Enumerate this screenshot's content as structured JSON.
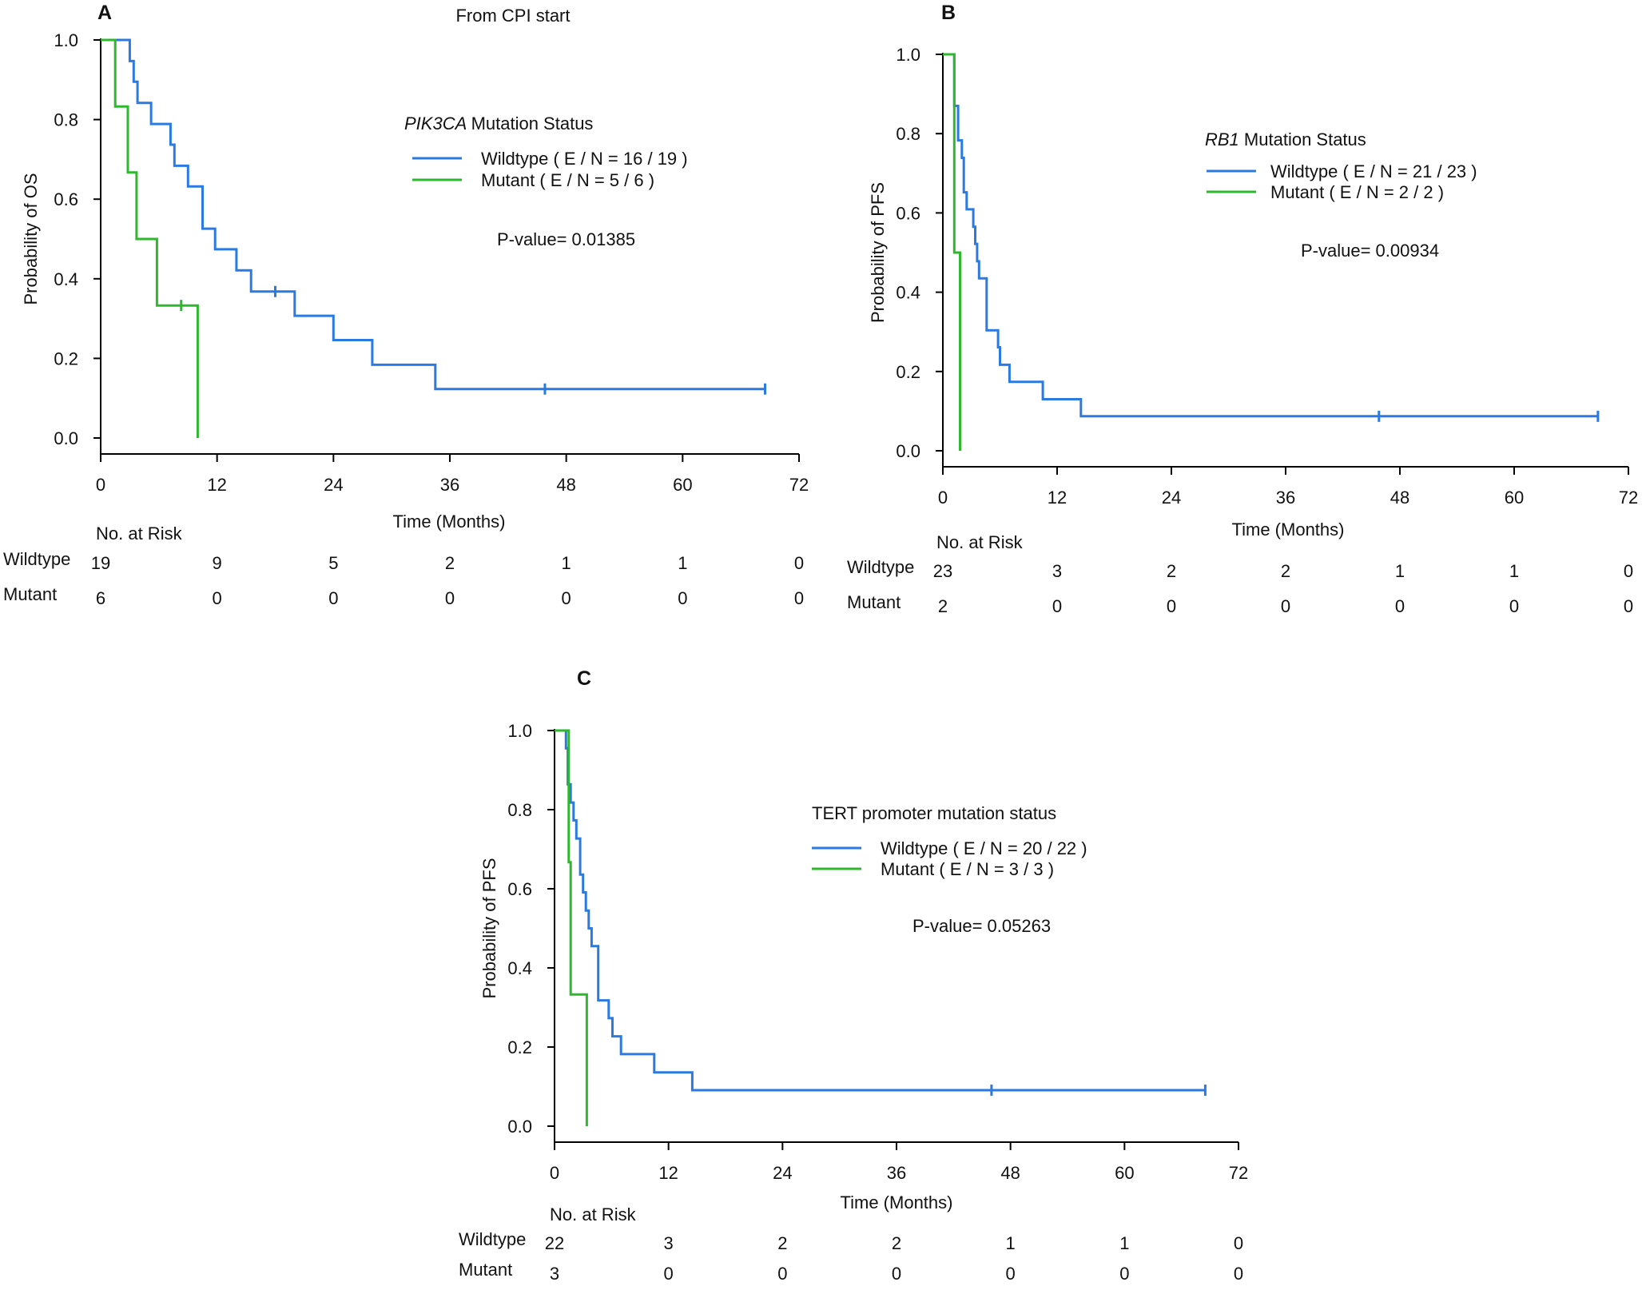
{
  "chart_data": [
    {
      "panel": "A",
      "type": "line",
      "subtype": "kaplan-meier",
      "title": "From CPI start",
      "ylabel": "Probability of OS",
      "xlabel": "Time (Months)",
      "xlim": [
        0,
        72
      ],
      "ylim": [
        0,
        1
      ],
      "x_ticks": [
        "0",
        "12",
        "24",
        "36",
        "48",
        "60",
        "72"
      ],
      "y_ticks": [
        "0.0",
        "0.2",
        "0.4",
        "0.6",
        "0.8",
        "1.0"
      ],
      "legend": {
        "title_italic": "PIK3CA",
        "title_rest": "Mutation Status",
        "pvalue": "P-value= 0.01385",
        "entries": [
          "Wildtype  ( E / N = 16 / 19 )",
          "Mutant  ( E / N = 5 / 6 )"
        ]
      },
      "series": [
        {
          "name": "Wildtype",
          "color": "#2a7ae2",
          "steps": [
            [
              0,
              1
            ],
            [
              3,
              1
            ],
            [
              3,
              0.947
            ],
            [
              3.4,
              0.947
            ],
            [
              3.4,
              0.895
            ],
            [
              3.8,
              0.895
            ],
            [
              3.8,
              0.842
            ],
            [
              5.2,
              0.842
            ],
            [
              5.2,
              0.789
            ],
            [
              7.2,
              0.789
            ],
            [
              7.2,
              0.737
            ],
            [
              7.6,
              0.737
            ],
            [
              7.6,
              0.684
            ],
            [
              9,
              0.684
            ],
            [
              9,
              0.632
            ],
            [
              10.5,
              0.632
            ],
            [
              10.5,
              0.526
            ],
            [
              11.8,
              0.526
            ],
            [
              11.8,
              0.474
            ],
            [
              14,
              0.474
            ],
            [
              14,
              0.421
            ],
            [
              15.5,
              0.421
            ],
            [
              15.5,
              0.368
            ],
            [
              20,
              0.368
            ],
            [
              20,
              0.307
            ],
            [
              24,
              0.307
            ],
            [
              24,
              0.246
            ],
            [
              28,
              0.246
            ],
            [
              28,
              0.184
            ],
            [
              34.5,
              0.184
            ],
            [
              34.5,
              0.123
            ],
            [
              68.5,
              0.123
            ]
          ],
          "censors": [
            [
              18,
              0.368
            ],
            [
              45.8,
              0.123
            ],
            [
              68.5,
              0.123
            ]
          ]
        },
        {
          "name": "Mutant",
          "color": "#2db82d",
          "steps": [
            [
              0,
              1
            ],
            [
              1.5,
              1
            ],
            [
              1.5,
              0.833
            ],
            [
              2.8,
              0.833
            ],
            [
              2.8,
              0.667
            ],
            [
              3.7,
              0.667
            ],
            [
              3.7,
              0.5
            ],
            [
              5.8,
              0.5
            ],
            [
              5.8,
              0.333
            ],
            [
              10,
              0.333
            ],
            [
              10,
              0
            ]
          ],
          "censors": [
            [
              8.3,
              0.333
            ]
          ]
        }
      ],
      "risk_table": {
        "header": "No. at Risk",
        "rows": [
          {
            "label": "Wildtype",
            "values": [
              "19",
              "9",
              "5",
              "2",
              "1",
              "1",
              "0"
            ]
          },
          {
            "label": "Mutant",
            "values": [
              "6",
              "0",
              "0",
              "0",
              "0",
              "0",
              "0"
            ]
          }
        ]
      }
    },
    {
      "panel": "B",
      "type": "line",
      "subtype": "kaplan-meier",
      "title": "",
      "ylabel": "Probability of PFS",
      "xlabel": "Time (Months)",
      "xlim": [
        0,
        72
      ],
      "ylim": [
        0,
        1
      ],
      "x_ticks": [
        "0",
        "12",
        "24",
        "36",
        "48",
        "60",
        "72"
      ],
      "y_ticks": [
        "0.0",
        "0.2",
        "0.4",
        "0.6",
        "0.8",
        "1.0"
      ],
      "legend": {
        "title_italic": "RB1",
        "title_rest": "Mutation Status",
        "pvalue": "P-value= 0.00934",
        "entries": [
          "Wildtype  ( E / N = 21 / 23 )",
          "Mutant  ( E / N = 2 / 2 )"
        ]
      },
      "series": [
        {
          "name": "Wildtype",
          "color": "#2a7ae2",
          "steps": [
            [
              0,
              1
            ],
            [
              1.2,
              1
            ],
            [
              1.2,
              0.87
            ],
            [
              1.6,
              0.87
            ],
            [
              1.6,
              0.783
            ],
            [
              2,
              0.783
            ],
            [
              2,
              0.739
            ],
            [
              2.2,
              0.739
            ],
            [
              2.2,
              0.652
            ],
            [
              2.5,
              0.652
            ],
            [
              2.5,
              0.609
            ],
            [
              3.2,
              0.609
            ],
            [
              3.2,
              0.565
            ],
            [
              3.4,
              0.565
            ],
            [
              3.4,
              0.522
            ],
            [
              3.6,
              0.522
            ],
            [
              3.6,
              0.478
            ],
            [
              3.8,
              0.478
            ],
            [
              3.8,
              0.435
            ],
            [
              4.6,
              0.435
            ],
            [
              4.6,
              0.304
            ],
            [
              5.8,
              0.304
            ],
            [
              5.8,
              0.261
            ],
            [
              6,
              0.261
            ],
            [
              6,
              0.217
            ],
            [
              7,
              0.217
            ],
            [
              7,
              0.174
            ],
            [
              10.5,
              0.174
            ],
            [
              10.5,
              0.13
            ],
            [
              14.5,
              0.13
            ],
            [
              14.5,
              0.087
            ],
            [
              68.8,
              0.087
            ]
          ],
          "censors": [
            [
              45.8,
              0.087
            ],
            [
              68.8,
              0.087
            ]
          ]
        },
        {
          "name": "Mutant",
          "color": "#2db82d",
          "steps": [
            [
              0,
              1
            ],
            [
              1.2,
              1
            ],
            [
              1.2,
              0.5
            ],
            [
              1.8,
              0.5
            ],
            [
              1.8,
              0
            ]
          ],
          "censors": []
        }
      ],
      "risk_table": {
        "header": "No. at Risk",
        "rows": [
          {
            "label": "Wildtype",
            "values": [
              "23",
              "3",
              "2",
              "2",
              "1",
              "1",
              "0"
            ]
          },
          {
            "label": "Mutant",
            "values": [
              "2",
              "0",
              "0",
              "0",
              "0",
              "0",
              "0"
            ]
          }
        ]
      }
    },
    {
      "panel": "C",
      "type": "line",
      "subtype": "kaplan-meier",
      "title": "",
      "ylabel": "Probability of PFS",
      "xlabel": "Time (Months)",
      "xlim": [
        0,
        72
      ],
      "ylim": [
        0,
        1
      ],
      "x_ticks": [
        "0",
        "12",
        "24",
        "36",
        "48",
        "60",
        "72"
      ],
      "y_ticks": [
        "0.0",
        "0.2",
        "0.4",
        "0.6",
        "0.8",
        "1.0"
      ],
      "legend": {
        "title_italic": "",
        "title_rest": "TERT promoter mutation status",
        "pvalue": "P-value= 0.05263",
        "entries": [
          "Wildtype  ( E / N = 20 / 22 )",
          "Mutant  ( E / N = 3 / 3 )"
        ]
      },
      "series": [
        {
          "name": "Wildtype",
          "color": "#2a7ae2",
          "steps": [
            [
              0,
              1
            ],
            [
              1.2,
              1
            ],
            [
              1.2,
              0.955
            ],
            [
              1.4,
              0.955
            ],
            [
              1.4,
              0.864
            ],
            [
              1.7,
              0.864
            ],
            [
              1.7,
              0.818
            ],
            [
              2,
              0.818
            ],
            [
              2,
              0.773
            ],
            [
              2.3,
              0.773
            ],
            [
              2.3,
              0.727
            ],
            [
              2.7,
              0.727
            ],
            [
              2.7,
              0.636
            ],
            [
              3,
              0.636
            ],
            [
              3,
              0.591
            ],
            [
              3.3,
              0.591
            ],
            [
              3.3,
              0.545
            ],
            [
              3.6,
              0.545
            ],
            [
              3.6,
              0.5
            ],
            [
              3.9,
              0.5
            ],
            [
              3.9,
              0.455
            ],
            [
              4.6,
              0.455
            ],
            [
              4.6,
              0.318
            ],
            [
              5.7,
              0.318
            ],
            [
              5.7,
              0.273
            ],
            [
              6.1,
              0.273
            ],
            [
              6.1,
              0.227
            ],
            [
              7,
              0.227
            ],
            [
              7,
              0.182
            ],
            [
              10.5,
              0.182
            ],
            [
              10.5,
              0.136
            ],
            [
              14.5,
              0.136
            ],
            [
              14.5,
              0.091
            ],
            [
              68.5,
              0.091
            ]
          ],
          "censors": [
            [
              46,
              0.091
            ],
            [
              68.5,
              0.091
            ]
          ]
        },
        {
          "name": "Mutant",
          "color": "#2db82d",
          "steps": [
            [
              0,
              1
            ],
            [
              1.5,
              1
            ],
            [
              1.5,
              0.667
            ],
            [
              1.7,
              0.667
            ],
            [
              1.7,
              0.333
            ],
            [
              3.4,
              0.333
            ],
            [
              3.4,
              0
            ]
          ],
          "censors": []
        }
      ],
      "risk_table": {
        "header": "No. at Risk",
        "rows": [
          {
            "label": "Wildtype",
            "values": [
              "22",
              "3",
              "2",
              "2",
              "1",
              "1",
              "0"
            ]
          },
          {
            "label": "Mutant",
            "values": [
              "3",
              "0",
              "0",
              "0",
              "0",
              "0",
              "0"
            ]
          }
        ]
      }
    }
  ]
}
